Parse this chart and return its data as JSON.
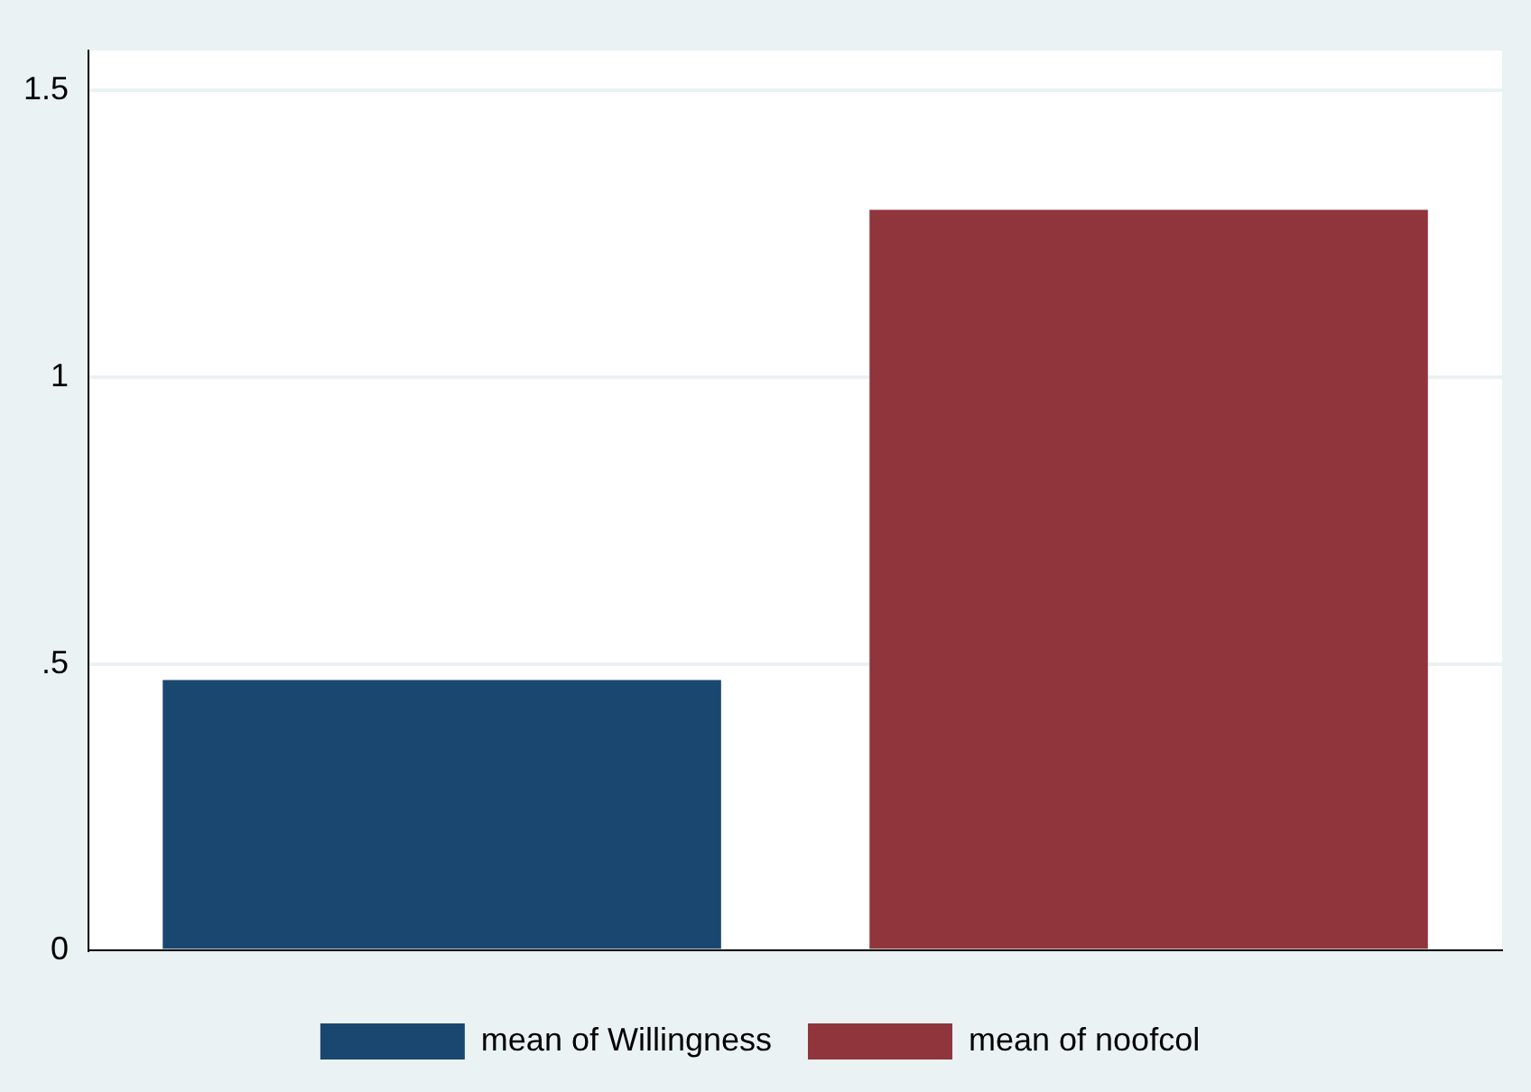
{
  "chart_data": {
    "type": "bar",
    "categories": [
      null
    ],
    "series": [
      {
        "name": "mean of Willingness",
        "color": "#1a476f",
        "values": [
          0.472
        ]
      },
      {
        "name": "mean of noofcol",
        "color": "#90353b",
        "values": [
          1.292
        ]
      }
    ],
    "ylim": [
      0,
      1.57
    ],
    "yticks": [
      0,
      {
        "value": 0.5,
        "label": ".5"
      },
      1,
      1.5
    ],
    "grid": "y",
    "legend": "bottom"
  }
}
